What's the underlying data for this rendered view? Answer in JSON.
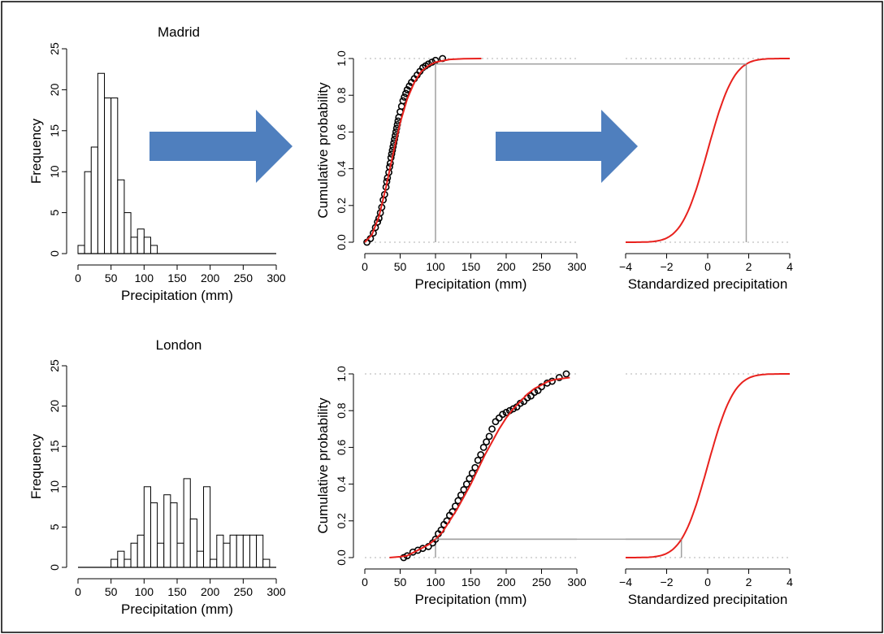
{
  "chart_data": [
    {
      "type": "bar",
      "id": "madrid-hist",
      "title": "Madrid",
      "xlabel": "Precipitation (mm)",
      "ylabel": "Frequency",
      "xlim": [
        0,
        300
      ],
      "ylim": [
        0,
        25
      ],
      "xticks": [
        "0",
        "50",
        "100",
        "150",
        "200",
        "250",
        "300"
      ],
      "yticks": [
        "0",
        "5",
        "10",
        "15",
        "20",
        "25"
      ],
      "bin_width": 10,
      "bin_starts": [
        0,
        10,
        20,
        30,
        40,
        50,
        60,
        70,
        80,
        90,
        100,
        110
      ],
      "values": [
        1,
        10,
        13,
        22,
        19,
        19,
        9,
        5,
        2,
        3,
        2,
        1
      ]
    },
    {
      "type": "line",
      "id": "madrid-ecdf",
      "xlabel": "Precipitation (mm)",
      "ylabel": "Cumulative probability",
      "xlim": [
        0,
        300
      ],
      "ylim": [
        0,
        1
      ],
      "xticks": [
        "0",
        "50",
        "100",
        "150",
        "200",
        "250",
        "300"
      ],
      "yticks": [
        "0.0",
        "0.2",
        "0.4",
        "0.6",
        "0.8",
        "1.0"
      ],
      "series": [
        {
          "kind": "points",
          "x": [
            3,
            8,
            12,
            15,
            18,
            20,
            22,
            24,
            26,
            28,
            30,
            31,
            32,
            34,
            35,
            36,
            37,
            38,
            39,
            40,
            41,
            42,
            43,
            44,
            45,
            46,
            47,
            48,
            50,
            52,
            54,
            56,
            58,
            60,
            63,
            66,
            70,
            74,
            78,
            82,
            86,
            90,
            95,
            100,
            110
          ],
          "y": [
            0.0,
            0.02,
            0.05,
            0.08,
            0.11,
            0.13,
            0.16,
            0.19,
            0.23,
            0.26,
            0.3,
            0.33,
            0.35,
            0.38,
            0.41,
            0.43,
            0.46,
            0.48,
            0.5,
            0.52,
            0.54,
            0.56,
            0.58,
            0.6,
            0.62,
            0.64,
            0.66,
            0.68,
            0.71,
            0.74,
            0.77,
            0.79,
            0.81,
            0.83,
            0.85,
            0.87,
            0.89,
            0.91,
            0.93,
            0.95,
            0.96,
            0.97,
            0.98,
            0.99,
            1.0
          ]
        },
        {
          "kind": "curve",
          "color": "#e8211d",
          "x": [
            0,
            10,
            20,
            30,
            40,
            50,
            60,
            70,
            80,
            90,
            100,
            120,
            140,
            165
          ],
          "y": [
            0.0,
            0.04,
            0.14,
            0.3,
            0.48,
            0.65,
            0.78,
            0.87,
            0.93,
            0.96,
            0.98,
            0.995,
            0.999,
            1.0
          ]
        }
      ],
      "guides": [
        {
          "x": [
            100,
            100
          ],
          "y": [
            0,
            0.97
          ]
        },
        {
          "x": [
            100,
            300
          ],
          "y": [
            0.97,
            0.97
          ]
        }
      ]
    },
    {
      "type": "line",
      "id": "madrid-std",
      "xlabel": "Standardized precipitation",
      "xlim": [
        -4,
        4
      ],
      "ylim": [
        0,
        1
      ],
      "xticks": [
        "−4",
        "−2",
        "0",
        "2",
        "4"
      ],
      "series": [
        {
          "kind": "normal-cdf",
          "color": "#e8211d",
          "x_from": -4,
          "x_to": 4
        }
      ],
      "guides": [
        {
          "x": [
            -4,
            1.88
          ],
          "y": [
            0.97,
            0.97
          ]
        },
        {
          "x": [
            1.88,
            1.88
          ],
          "y": [
            0.97,
            0
          ]
        }
      ]
    },
    {
      "type": "bar",
      "id": "london-hist",
      "title": "London",
      "xlabel": "Precipitation (mm)",
      "ylabel": "Frequency",
      "xlim": [
        0,
        300
      ],
      "ylim": [
        0,
        25
      ],
      "xticks": [
        "0",
        "50",
        "100",
        "150",
        "200",
        "250",
        "300"
      ],
      "yticks": [
        "0",
        "5",
        "10",
        "15",
        "20",
        "25"
      ],
      "bin_width": 10,
      "bin_starts": [
        0,
        10,
        20,
        30,
        40,
        50,
        60,
        70,
        80,
        90,
        100,
        110,
        120,
        130,
        140,
        150,
        160,
        170,
        180,
        190,
        200,
        210,
        220,
        230,
        240,
        250,
        260,
        270,
        280,
        290
      ],
      "values": [
        0,
        0,
        0,
        0,
        0,
        1,
        2,
        1,
        3,
        4,
        10,
        8,
        3,
        9,
        8,
        3,
        11,
        6,
        2,
        10,
        1,
        4,
        3,
        4,
        4,
        4,
        4,
        4,
        1,
        0
      ]
    },
    {
      "type": "line",
      "id": "london-ecdf",
      "xlabel": "Precipitation (mm)",
      "ylabel": "Cumulative probability",
      "xlim": [
        0,
        300
      ],
      "ylim": [
        0,
        1
      ],
      "xticks": [
        "0",
        "50",
        "100",
        "150",
        "200",
        "250",
        "300"
      ],
      "yticks": [
        "0.0",
        "0.2",
        "0.4",
        "0.6",
        "0.8",
        "1.0"
      ],
      "series": [
        {
          "kind": "points",
          "x": [
            55,
            60,
            68,
            75,
            82,
            90,
            96,
            100,
            104,
            108,
            112,
            116,
            120,
            124,
            128,
            132,
            136,
            140,
            144,
            148,
            152,
            156,
            160,
            164,
            168,
            172,
            176,
            180,
            185,
            190,
            195,
            200,
            205,
            210,
            215,
            220,
            225,
            230,
            235,
            240,
            245,
            250,
            258,
            265,
            275,
            285
          ],
          "y": [
            0.0,
            0.01,
            0.03,
            0.04,
            0.05,
            0.06,
            0.08,
            0.1,
            0.13,
            0.15,
            0.18,
            0.2,
            0.23,
            0.25,
            0.28,
            0.31,
            0.34,
            0.37,
            0.4,
            0.43,
            0.46,
            0.49,
            0.53,
            0.56,
            0.6,
            0.63,
            0.66,
            0.7,
            0.74,
            0.76,
            0.78,
            0.79,
            0.8,
            0.81,
            0.82,
            0.84,
            0.85,
            0.87,
            0.88,
            0.9,
            0.91,
            0.93,
            0.95,
            0.96,
            0.98,
            1.0
          ]
        },
        {
          "kind": "curve",
          "color": "#e8211d",
          "x": [
            35,
            50,
            60,
            70,
            80,
            90,
            100,
            110,
            120,
            130,
            140,
            150,
            160,
            170,
            180,
            190,
            200,
            210,
            220,
            230,
            240,
            250,
            260,
            270,
            280,
            290
          ],
          "y": [
            0.0,
            0.005,
            0.01,
            0.03,
            0.05,
            0.07,
            0.1,
            0.14,
            0.2,
            0.26,
            0.33,
            0.4,
            0.48,
            0.56,
            0.63,
            0.7,
            0.76,
            0.81,
            0.85,
            0.89,
            0.92,
            0.94,
            0.96,
            0.97,
            0.975,
            0.98
          ]
        }
      ],
      "guides": [
        {
          "x": [
            100,
            100
          ],
          "y": [
            0,
            0.1
          ]
        },
        {
          "x": [
            100,
            300
          ],
          "y": [
            0.1,
            0.1
          ]
        }
      ]
    },
    {
      "type": "line",
      "id": "london-std",
      "xlabel": "Standardized precipitation",
      "xlim": [
        -4,
        4
      ],
      "ylim": [
        0,
        1
      ],
      "xticks": [
        "−4",
        "−2",
        "0",
        "2",
        "4"
      ],
      "series": [
        {
          "kind": "normal-cdf",
          "color": "#e8211d",
          "x_from": -4,
          "x_to": 4
        }
      ],
      "guides": [
        {
          "x": [
            -4,
            -1.28
          ],
          "y": [
            0.1,
            0.1
          ]
        },
        {
          "x": [
            -1.28,
            -1.28
          ],
          "y": [
            0.1,
            0
          ]
        }
      ]
    }
  ],
  "colors": {
    "curve": "#e8211d",
    "arrow": "#4f7fbe",
    "guide": "#a0a0a0",
    "dotted_ref": "#b0b0b0"
  },
  "arrows": [
    {
      "name": "hist-to-ecdf-arrow",
      "icon": "right-arrow-icon"
    },
    {
      "name": "ecdf-to-std-arrow",
      "icon": "right-arrow-icon"
    }
  ]
}
